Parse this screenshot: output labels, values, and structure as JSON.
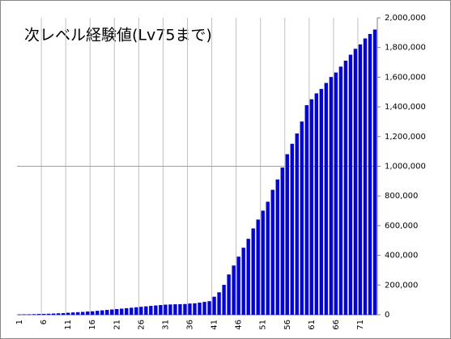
{
  "chart_data": {
    "type": "bar",
    "title": "次レベル経験値(Lv75まで)",
    "categories": [
      "1",
      null,
      null,
      null,
      null,
      "6",
      null,
      null,
      null,
      null,
      "11",
      null,
      null,
      null,
      null,
      "16",
      null,
      null,
      null,
      null,
      "21",
      null,
      null,
      null,
      null,
      "26",
      null,
      null,
      null,
      null,
      "31",
      null,
      null,
      null,
      null,
      "36",
      null,
      null,
      null,
      null,
      "41",
      null,
      null,
      null,
      null,
      "46",
      null,
      null,
      null,
      null,
      "51",
      null,
      null,
      null,
      null,
      "56",
      null,
      null,
      null,
      null,
      "61",
      null,
      null,
      null,
      null,
      "66",
      null,
      null,
      null,
      null,
      "71",
      null,
      null,
      null
    ],
    "values": [
      500,
      1000,
      1500,
      2500,
      3500,
      4500,
      5500,
      7000,
      8500,
      10000,
      12000,
      14000,
      16000,
      18000,
      20000,
      22000,
      25000,
      28000,
      31000,
      34000,
      37000,
      40000,
      43000,
      46000,
      49000,
      52000,
      55000,
      58000,
      61000,
      64000,
      67000,
      68000,
      69000,
      70000,
      71000,
      74000,
      76000,
      80000,
      85000,
      90000,
      120000,
      150000,
      200000,
      270000,
      330000,
      390000,
      450000,
      510000,
      580000,
      640000,
      700000,
      760000,
      840000,
      910000,
      990000,
      1080000,
      1150000,
      1220000,
      1300000,
      1410000,
      1450000,
      1490000,
      1520000,
      1560000,
      1600000,
      1630000,
      1670000,
      1710000,
      1750000,
      1790000,
      1820000,
      1860000,
      1890000,
      1920000
    ],
    "color": "#0000ee",
    "ylim": [
      0,
      2000000
    ],
    "yticks": [
      0,
      {
        "value": 200000,
        "label": "200,000"
      },
      {
        "value": 400000,
        "label": "400,000"
      },
      {
        "value": 600000,
        "label": "600,000"
      },
      {
        "value": 800000,
        "label": "800,000"
      },
      {
        "value": 1000000,
        "label": "1,000,000"
      },
      {
        "value": 1200000,
        "label": "1,200,000"
      },
      {
        "value": 1400000,
        "label": "1,400,000"
      },
      {
        "value": 1600000,
        "label": "1,600,000"
      },
      {
        "value": 1800000,
        "label": "1,800,000"
      },
      {
        "value": 2000000,
        "label": "2,000,000"
      }
    ],
    "hgrid": [
      1000000
    ]
  }
}
